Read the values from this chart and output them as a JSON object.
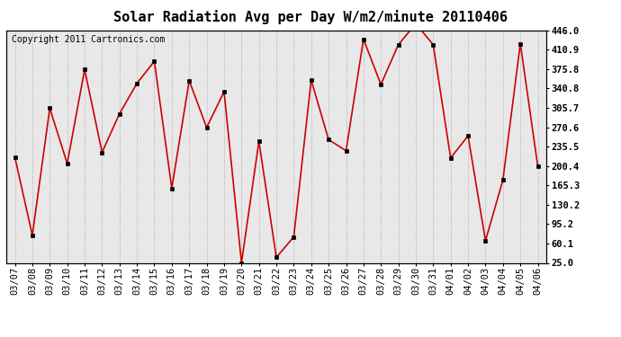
{
  "title": "Solar Radiation Avg per Day W/m2/minute 20110406",
  "copyright": "Copyright 2011 Cartronics.com",
  "dates": [
    "03/07",
    "03/08",
    "03/09",
    "03/10",
    "03/11",
    "03/12",
    "03/13",
    "03/14",
    "03/15",
    "03/16",
    "03/17",
    "03/18",
    "03/19",
    "03/20",
    "03/21",
    "03/22",
    "03/23",
    "03/24",
    "03/25",
    "03/26",
    "03/27",
    "03/28",
    "03/29",
    "03/30",
    "03/31",
    "04/01",
    "04/02",
    "04/03",
    "04/04",
    "04/05",
    "04/06"
  ],
  "values": [
    216,
    75,
    305,
    205,
    375,
    225,
    295,
    350,
    390,
    160,
    355,
    270,
    335,
    25,
    245,
    35,
    72,
    356,
    248,
    228,
    430,
    348,
    420,
    458,
    420,
    215,
    255,
    65,
    175,
    422,
    200
  ],
  "line_color": "#cc0000",
  "marker_color": "#000000",
  "bg_color": "#e8e8e8",
  "grid_color": "#aaaaaa",
  "yticks": [
    25.0,
    60.1,
    95.2,
    130.2,
    165.3,
    200.4,
    235.5,
    270.6,
    305.7,
    340.8,
    375.8,
    410.9,
    446.0
  ],
  "ymin": 25.0,
  "ymax": 446.0,
  "title_fontsize": 11,
  "copyright_fontsize": 7,
  "tick_fontsize": 7.5
}
